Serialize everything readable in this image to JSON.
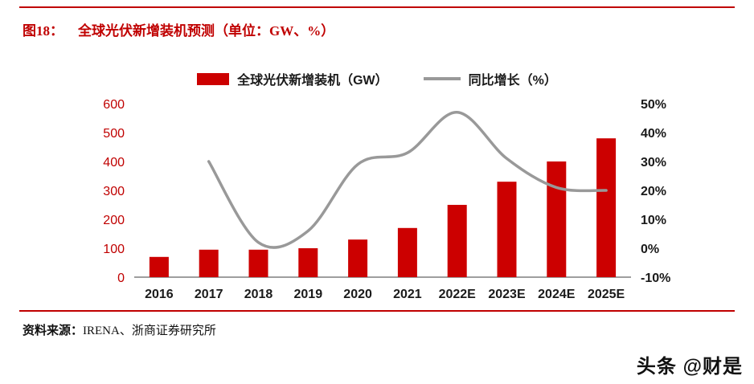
{
  "page": {
    "title_prefix": "图18：",
    "title": "全球光伏新增装机预测（单位：GW、%）",
    "source_label": "资料来源：",
    "source_text": "IRENA、浙商证券研究所",
    "watermark": "头条 @财是"
  },
  "colors": {
    "accent_red": "#c00000",
    "bar_red": "#cc0000",
    "line_gray": "#999999",
    "axis_text": "#1a1a1a"
  },
  "chart_data": {
    "type": "bar",
    "subtype": "bar+line dual-axis",
    "title": "全球光伏新增装机预测（单位：GW、%）",
    "categories": [
      "2016",
      "2017",
      "2018",
      "2019",
      "2020",
      "2021",
      "2022E",
      "2023E",
      "2024E",
      "2025E"
    ],
    "series": [
      {
        "name": "全球光伏新增装机（GW）",
        "type": "bar",
        "axis": "left",
        "color": "#cc0000",
        "values": [
          70,
          95,
          95,
          100,
          130,
          170,
          250,
          330,
          400,
          480
        ]
      },
      {
        "name": "同比增长（%）",
        "type": "line",
        "axis": "right",
        "color": "#999999",
        "values": [
          null,
          30,
          2,
          6,
          29,
          33,
          47,
          31,
          21,
          20
        ]
      }
    ],
    "left_axis": {
      "min": 0,
      "max": 600,
      "ticks": [
        0,
        100,
        200,
        300,
        400,
        500,
        600
      ],
      "suffix": ""
    },
    "right_axis": {
      "min": -10,
      "max": 50,
      "ticks": [
        -10,
        0,
        10,
        20,
        30,
        40,
        50
      ],
      "suffix": "%"
    },
    "grid": false,
    "legend_position": "top"
  }
}
